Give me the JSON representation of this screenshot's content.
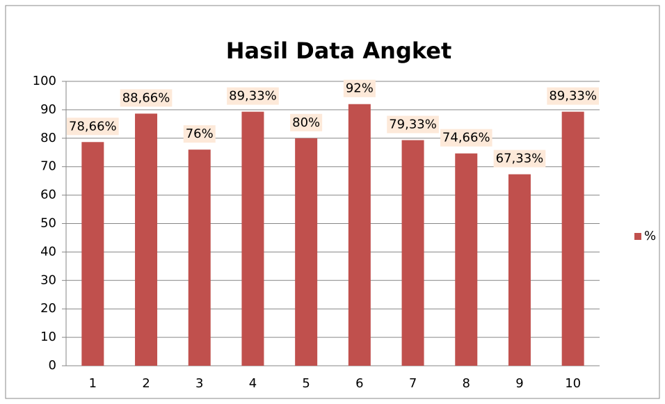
{
  "chart_data": {
    "type": "bar",
    "title": "Hasil Data Angket",
    "categories": [
      "1",
      "2",
      "3",
      "4",
      "5",
      "6",
      "7",
      "8",
      "9",
      "10"
    ],
    "series": [
      {
        "name": "%",
        "color": "#c0504d",
        "values": [
          78.66,
          88.66,
          76,
          89.33,
          80,
          92,
          79.33,
          74.66,
          67.33,
          89.33
        ],
        "value_labels": [
          "78,66%",
          "88,66%",
          "76%",
          "89,33%",
          "80%",
          "92%",
          "79,33%",
          "74,66%",
          "67,33%",
          "89,33%"
        ]
      }
    ],
    "ylim": [
      0,
      100
    ],
    "yticks": [
      0,
      10,
      20,
      30,
      40,
      50,
      60,
      70,
      80,
      90,
      100
    ],
    "grid": true,
    "legend": "right"
  }
}
